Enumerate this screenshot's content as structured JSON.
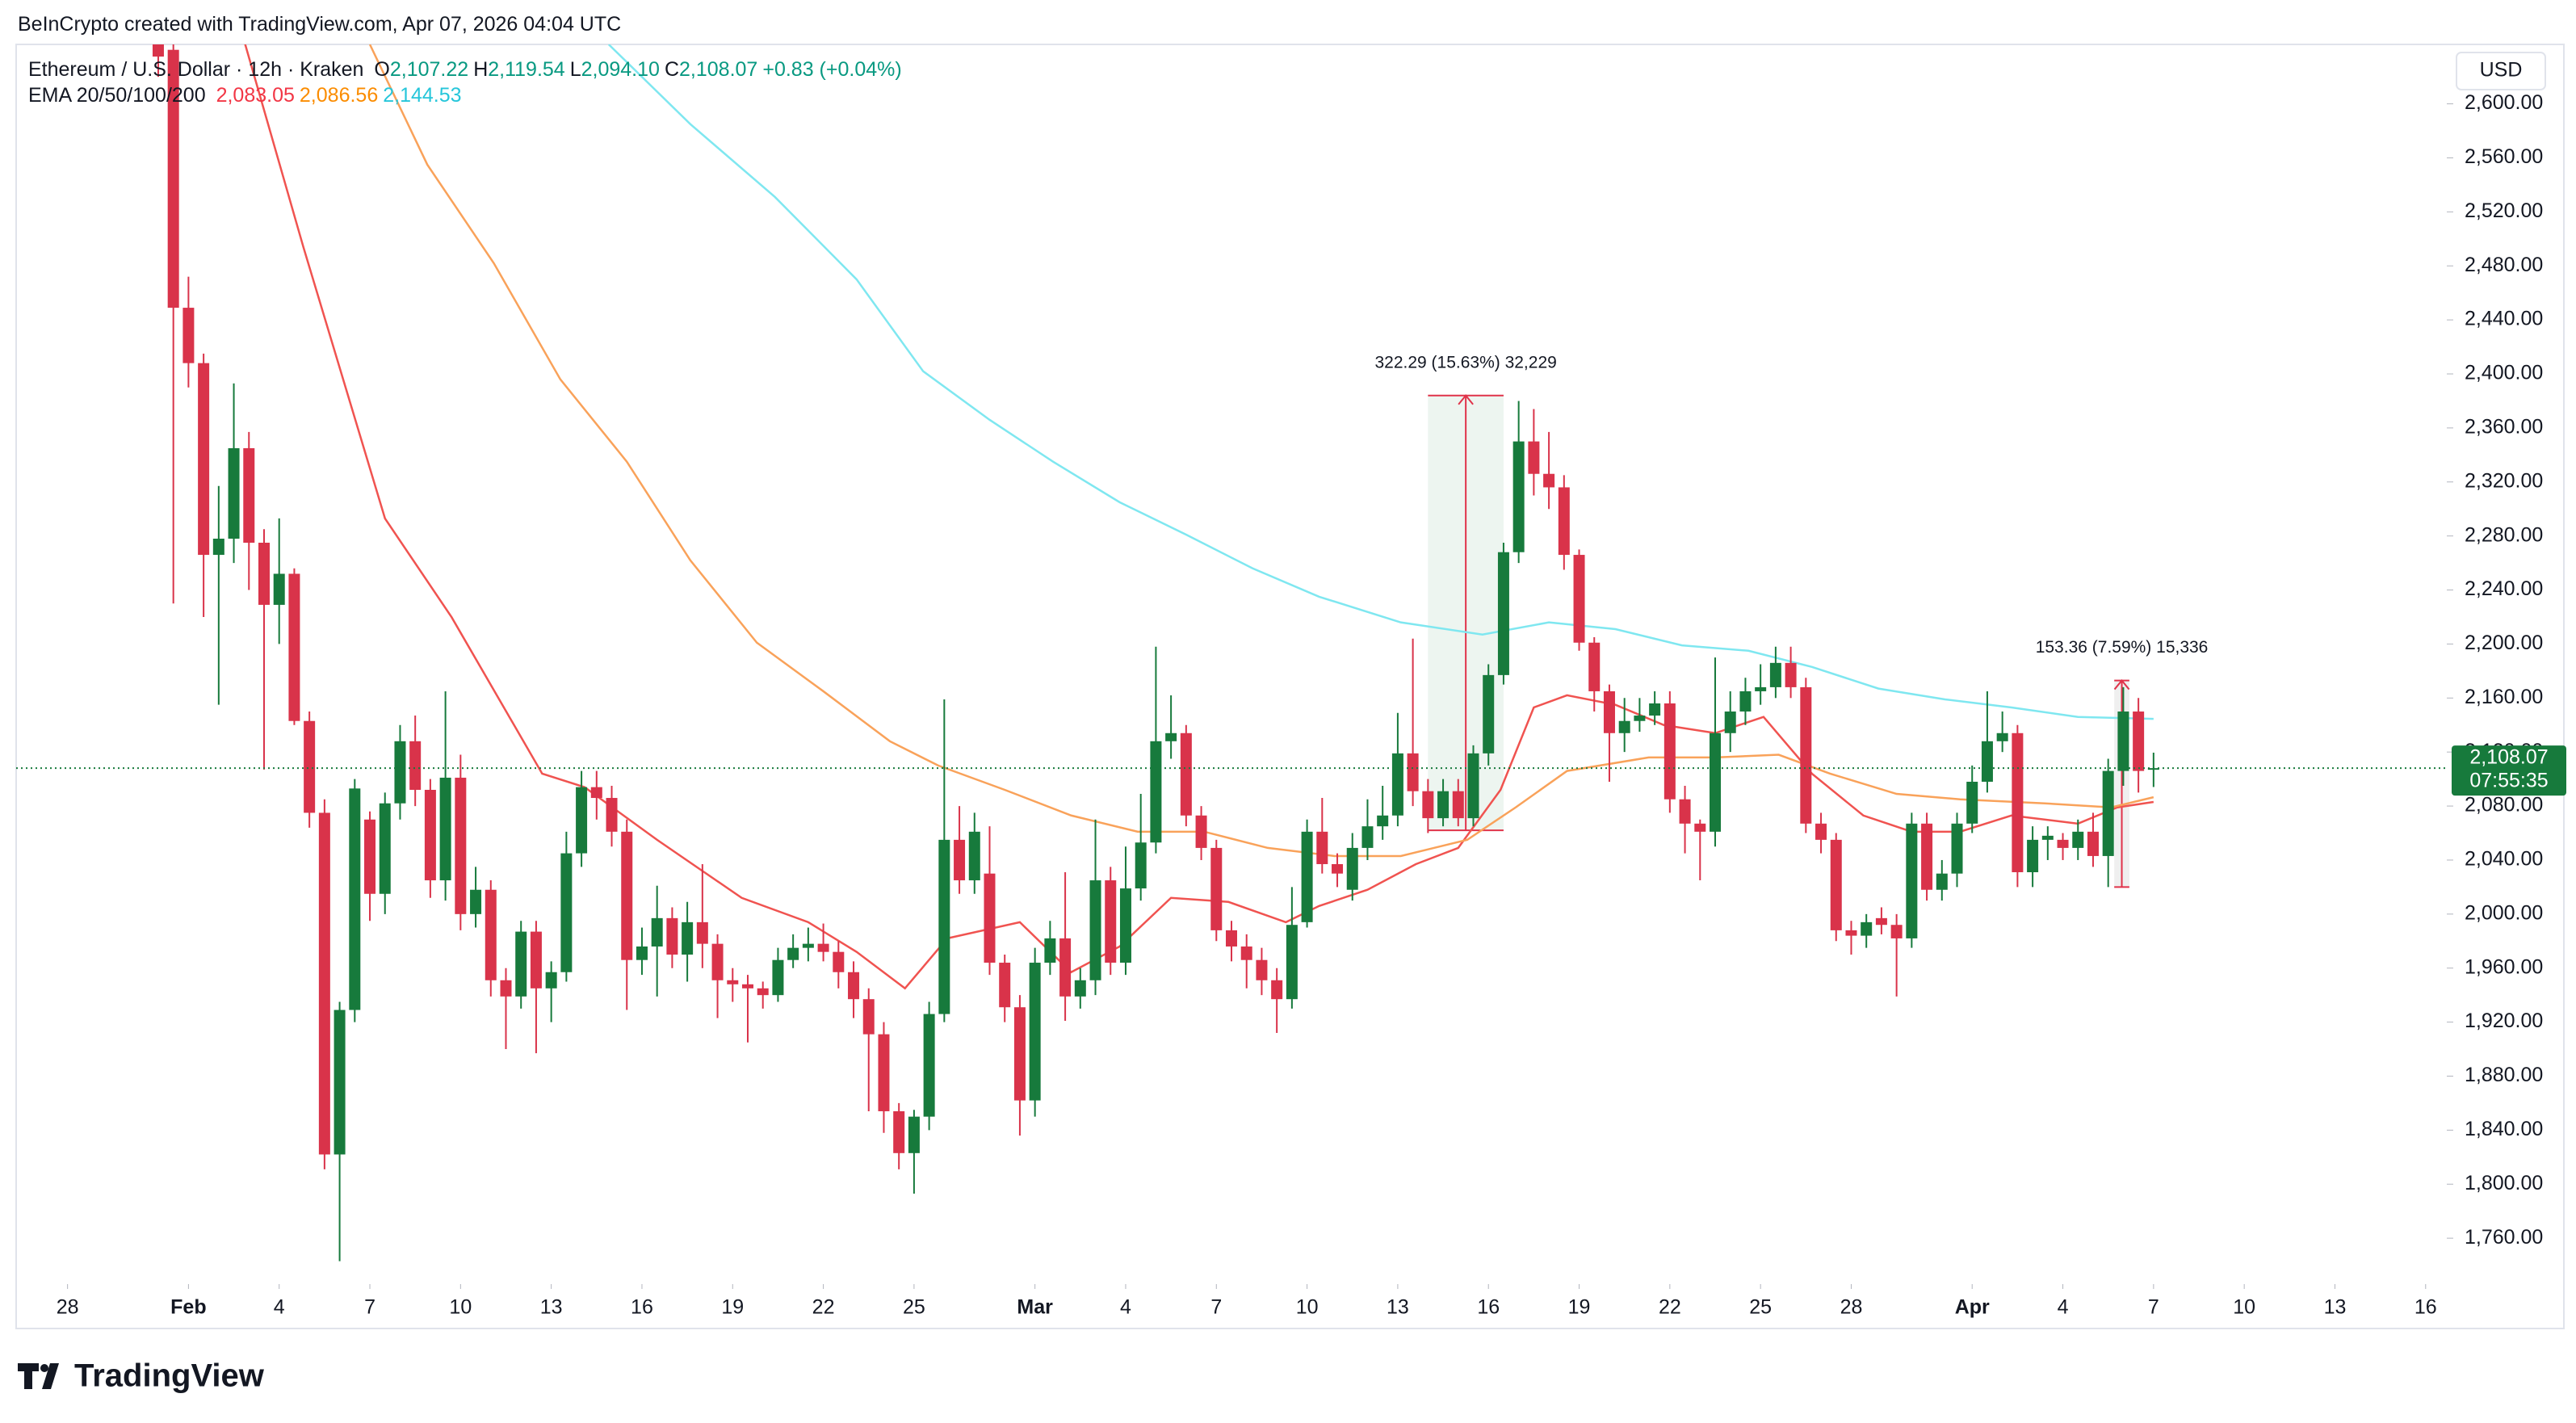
{
  "header": {
    "credit": "BeInCrypto created with TradingView.com, Apr 07, 2026 04:04 UTC",
    "symbol": "Ethereum / U.S. Dollar · 12h · Kraken",
    "ohlc": [
      {
        "key": "O",
        "text": "2,107.22"
      },
      {
        "key": "H",
        "text": "2,119.54"
      },
      {
        "key": "L",
        "text": "2,094.10"
      },
      {
        "key": "C",
        "text": "2,108.07"
      }
    ],
    "change": "+0.83 (+0.04%)",
    "ema_label": "EMA 20/50/100/200",
    "ema_values": [
      {
        "text": "2,083.05",
        "color": "#f23645"
      },
      {
        "text": "2,086.56",
        "color": "#fb8c00"
      },
      {
        "text": "2,144.53",
        "color": "#26c6da"
      }
    ],
    "currency": "USD"
  },
  "footer": {
    "logo_text": "TradingView"
  },
  "chart_data": {
    "type": "candlestick",
    "up_color": "#177a3c",
    "down_color": "#d9334a",
    "x": [
      31,
      31.5,
      32,
      32.5,
      33,
      33.5,
      34,
      34.5,
      35,
      35.5,
      36,
      36.5,
      37,
      37.5,
      38,
      38.5,
      39,
      39.5,
      40,
      40.5,
      41,
      41.5,
      42,
      42.5,
      43,
      43.5,
      44,
      44.5,
      45,
      45.5,
      46,
      46.5,
      47,
      47.5,
      48,
      48.5,
      49,
      49.5,
      50,
      50.5,
      51,
      51.5,
      52,
      52.5,
      53,
      53.5,
      54,
      54.5,
      55,
      55.5,
      56,
      56.5,
      57,
      57.5,
      58,
      58.5,
      59,
      59.5,
      60,
      60.5,
      61,
      61.5,
      62,
      62.5,
      63,
      63.5,
      64,
      64.5,
      65,
      65.5,
      66,
      66.5,
      67,
      67.5,
      68,
      68.5,
      69,
      69.5,
      70,
      70.5,
      71,
      71.5,
      72,
      72.5,
      73,
      73.5,
      74,
      74.5,
      75,
      75.5,
      76,
      76.5,
      77,
      77.5,
      78,
      78.5,
      79,
      79.5,
      80,
      80.5,
      81,
      81.5,
      82,
      82.5,
      83,
      83.5,
      84,
      84.5,
      85,
      85.5,
      86,
      86.5,
      87,
      87.5,
      88,
      88.5,
      89,
      89.5,
      90,
      90.5,
      91,
      91.5,
      92,
      92.5,
      93,
      93.5,
      94,
      94.5,
      95,
      95.5,
      96,
      96.5,
      97
    ],
    "open": [
      2660,
      2640,
      2449,
      2408,
      2266,
      2278,
      2345,
      2275,
      2229,
      2252,
      2143,
      2075,
      1822,
      1929,
      2070,
      2015,
      2082,
      2128,
      2092,
      2025,
      2101,
      2000,
      2018,
      1951,
      1939,
      1987,
      1945,
      1957,
      2045,
      2094,
      2086,
      2061,
      1966,
      1976,
      1997,
      1970,
      1994,
      1978,
      1951,
      1948,
      1945,
      1940,
      1966,
      1975,
      1978,
      1972,
      1957,
      1937,
      1911,
      1854,
      1823,
      1850,
      1926,
      2055,
      2025,
      2030,
      1964,
      1931,
      1862,
      1964,
      1982,
      1939,
      1951,
      2025,
      1964,
      2019,
      2053,
      2128,
      2134,
      2073,
      2049,
      1988,
      1976,
      1966,
      1951,
      1937,
      1994,
      2061,
      2037,
      2018,
      2049,
      2065,
      2073,
      2119,
      2091,
      2071,
      2091,
      2071,
      2119,
      2177,
      2268,
      2350,
      2326,
      2316,
      2266,
      2201,
      2165,
      2134,
      2143,
      2147,
      2156,
      2085,
      2067,
      2061,
      2134,
      2150,
      2165,
      2168,
      2186,
      2168,
      2067,
      2055,
      1988,
      1984,
      1997,
      1992,
      1982,
      2067,
      2018,
      2030,
      2067,
      2098,
      2128,
      2134,
      2031,
      2055,
      2055,
      2049,
      2061,
      2043,
      2106,
      2150,
      2107.22
    ],
    "high": [
      2700,
      2650,
      2472,
      2415,
      2317,
      2393,
      2357,
      2285,
      2293,
      2256,
      2150,
      2085,
      1935,
      2100,
      2076,
      2090,
      2140,
      2147,
      2100,
      2165,
      2118,
      2035,
      2025,
      1960,
      1995,
      1995,
      1965,
      2061,
      2106,
      2106,
      2095,
      2070,
      1990,
      2021,
      2005,
      2009,
      2037,
      1985,
      1960,
      1955,
      1950,
      1975,
      1985,
      1990,
      1993,
      1980,
      1965,
      1945,
      1920,
      1860,
      1855,
      1935,
      2159,
      2080,
      2075,
      2065,
      1970,
      1940,
      1975,
      1995,
      2031,
      1960,
      2070,
      2035,
      2050,
      2089,
      2198,
      2162,
      2140,
      2080,
      2055,
      1995,
      1985,
      1975,
      1960,
      2020,
      2070,
      2086,
      2045,
      2060,
      2085,
      2095,
      2149,
      2204,
      2100,
      2100,
      2100,
      2125,
      2185,
      2275,
      2380,
      2374,
      2357,
      2325,
      2270,
      2205,
      2170,
      2160,
      2160,
      2165,
      2165,
      2095,
      2070,
      2190,
      2165,
      2175,
      2185,
      2198,
      2198,
      2175,
      2075,
      2060,
      1995,
      2000,
      2005,
      2000,
      2075,
      2075,
      2040,
      2075,
      2110,
      2165,
      2150,
      2140,
      2065,
      2065,
      2060,
      2070,
      2075,
      2115,
      2168,
      2160,
      2119.54
    ],
    "low": [
      2620,
      2230,
      2390,
      2220,
      2155,
      2260,
      2240,
      2107,
      2200,
      2140,
      2064,
      1811,
      1743,
      1920,
      1995,
      2000,
      2070,
      2080,
      2012,
      2010,
      1988,
      1990,
      1939,
      1900,
      1930,
      1897,
      1920,
      1950,
      2035,
      2070,
      2050,
      1929,
      1955,
      1939,
      1960,
      1950,
      1960,
      1923,
      1935,
      1905,
      1930,
      1935,
      1960,
      1965,
      1965,
      1945,
      1923,
      1854,
      1838,
      1811,
      1793,
      1840,
      1920,
      2015,
      2015,
      1955,
      1920,
      1836,
      1850,
      1955,
      1921,
      1930,
      1940,
      1955,
      1955,
      2010,
      2045,
      2115,
      2065,
      2040,
      1980,
      1965,
      1945,
      1940,
      1912,
      1930,
      1990,
      2030,
      2020,
      2010,
      2040,
      2055,
      2065,
      2080,
      2060,
      2065,
      2065,
      2065,
      2110,
      2170,
      2260,
      2310,
      2300,
      2255,
      2195,
      2150,
      2098,
      2120,
      2135,
      2140,
      2075,
      2045,
      2025,
      2050,
      2120,
      2140,
      2155,
      2160,
      2160,
      2060,
      2045,
      1980,
      1970,
      1975,
      1985,
      1939,
      1975,
      2010,
      2010,
      2020,
      2060,
      2090,
      2120,
      2020,
      2020,
      2040,
      2040,
      2040,
      2035,
      2020,
      2095,
      2090,
      2094.1
    ],
    "close": [
      2635,
      2449,
      2408,
      2266,
      2278,
      2345,
      2275,
      2229,
      2252,
      2143,
      2075,
      1822,
      1929,
      2093,
      2015,
      2082,
      2128,
      2092,
      2025,
      2101,
      2000,
      2018,
      1951,
      1939,
      1987,
      1945,
      1957,
      2045,
      2094,
      2086,
      2061,
      1966,
      1976,
      1997,
      1970,
      1994,
      1978,
      1951,
      1948,
      1945,
      1940,
      1966,
      1975,
      1978,
      1972,
      1957,
      1937,
      1911,
      1854,
      1823,
      1850,
      1926,
      2055,
      2025,
      2061,
      1964,
      1931,
      1862,
      1964,
      1982,
      1939,
      1951,
      2025,
      1964,
      2019,
      2053,
      2128,
      2134,
      2073,
      2049,
      1988,
      1976,
      1966,
      1951,
      1937,
      1992,
      2061,
      2037,
      2030,
      2049,
      2065,
      2073,
      2119,
      2091,
      2071,
      2091,
      2071,
      2119,
      2177,
      2268,
      2350,
      2326,
      2316,
      2266,
      2201,
      2165,
      2134,
      2143,
      2147,
      2156,
      2085,
      2067,
      2061,
      2134,
      2150,
      2165,
      2168,
      2186,
      2168,
      2067,
      2055,
      1988,
      1984,
      1994,
      1992,
      1982,
      2067,
      2018,
      2030,
      2067,
      2098,
      2128,
      2134,
      2031,
      2055,
      2058,
      2049,
      2061,
      2043,
      2106,
      2150,
      2106,
      2108.07
    ],
    "overlays": [
      {
        "color": "#f05350",
        "x": [
          33.8,
          35.8,
          38.5,
          40.7,
          43.7,
          45.1,
          47.5,
          50.3,
          52.5,
          54.1,
          55.7,
          57.1,
          59.5,
          61.2,
          62.8,
          64.5,
          66.4,
          68.3,
          69.4,
          71.0,
          72.6,
          74.0,
          75.4,
          76.5,
          77.6,
          79.2,
          80.8,
          82.5,
          84.1,
          85.7,
          87.4,
          89.0,
          90.6,
          92.3,
          94.5,
          95.8,
          97
        ],
        "values": [
          2650,
          2494,
          2293,
          2220,
          2104,
          2094,
          2055,
          2012,
          1994,
          1972,
          1945,
          1982,
          1994,
          1957,
          1976,
          2012,
          2009,
          1994,
          2006,
          2018,
          2037,
          2049,
          2092,
          2153,
          2162,
          2155,
          2140,
          2134,
          2146,
          2104,
          2073,
          2061,
          2061,
          2073,
          2067,
          2079,
          2083.05
        ]
      },
      {
        "color": "#f9a25a",
        "x": [
          38.0,
          39.9,
          42.1,
          44.3,
          46.5,
          48.6,
          50.8,
          53.0,
          55.2,
          56.8,
          59.0,
          61.2,
          63.4,
          65.6,
          67.7,
          69.9,
          72.1,
          74.3,
          75.9,
          77.6,
          80.3,
          82.5,
          84.6,
          86.3,
          88.5,
          90.6,
          93.4,
          95.6,
          97
        ],
        "values": [
          2644,
          2555,
          2482,
          2396,
          2335,
          2262,
          2201,
          2165,
          2128,
          2110,
          2092,
          2073,
          2061,
          2061,
          2049,
          2043,
          2043,
          2055,
          2079,
          2106,
          2116,
          2116,
          2118,
          2104,
          2089,
          2085,
          2082,
          2079,
          2086.56
        ]
      },
      {
        "color": "#7fe7f0",
        "x": [
          45.9,
          48.6,
          51.4,
          54.1,
          56.3,
          58.5,
          60.6,
          62.8,
          65.0,
          67.2,
          69.4,
          72.1,
          74.8,
          77.0,
          79.2,
          81.4,
          83.6,
          85.7,
          87.9,
          90.1,
          92.3,
          94.5,
          97
        ],
        "values": [
          2644,
          2585,
          2531,
          2470,
          2402,
          2366,
          2335,
          2305,
          2281,
          2256,
          2235,
          2216,
          2207,
          2216,
          2211,
          2199,
          2195,
          2183,
          2167,
          2159,
          2153,
          2146,
          2144.53
        ]
      }
    ],
    "measures": [
      {
        "label": "322.29 (15.63%) 32,229",
        "x": [
          73.0,
          75.5
        ],
        "y": [
          2062,
          2384
        ],
        "fill": "rgba(23,122,60,0.08)",
        "color": "#e0334a"
      },
      {
        "label": "153.36 (7.59%) 15,336",
        "x": [
          95.7,
          96.2
        ],
        "y": [
          2020,
          2173
        ],
        "fill": "rgba(120,120,120,0.12)",
        "color": "#e0334a"
      }
    ],
    "last_price": {
      "value": 2108.07,
      "label": "2,108.07",
      "color": "#177a3c"
    },
    "countdown": "07:55:35",
    "xlim": [
      26.3,
      106.7
    ],
    "xticks": [
      28,
      {
        "value": 32,
        "label": "Feb"
      },
      {
        "value": 35,
        "label": "4"
      },
      {
        "value": 38,
        "label": "7"
      },
      {
        "value": 41,
        "label": "10"
      },
      {
        "value": 44,
        "label": "13"
      },
      {
        "value": 47,
        "label": "16"
      },
      {
        "value": 50,
        "label": "19"
      },
      {
        "value": 53,
        "label": "22"
      },
      {
        "value": 56,
        "label": "25"
      },
      {
        "value": 60,
        "label": "Mar"
      },
      {
        "value": 63,
        "label": "4"
      },
      {
        "value": 66,
        "label": "7"
      },
      {
        "value": 69,
        "label": "10"
      },
      {
        "value": 72,
        "label": "13"
      },
      {
        "value": 75,
        "label": "16"
      },
      {
        "value": 78,
        "label": "19"
      },
      {
        "value": 81,
        "label": "22"
      },
      {
        "value": 84,
        "label": "25"
      },
      {
        "value": 87,
        "label": "28"
      },
      {
        "value": 91,
        "label": "Apr"
      },
      {
        "value": 94,
        "label": "4"
      },
      {
        "value": 97,
        "label": "7"
      },
      {
        "value": 100,
        "label": "10"
      },
      {
        "value": 103,
        "label": "13"
      },
      {
        "value": 106,
        "label": "16"
      }
    ],
    "ylim": [
      1726,
      2644
    ],
    "yticks": [
      {
        "value": 1760,
        "label": "1,760.00"
      },
      {
        "value": 1800,
        "label": "1,800.00"
      },
      {
        "value": 1840,
        "label": "1,840.00"
      },
      {
        "value": 1880,
        "label": "1,880.00"
      },
      {
        "value": 1920,
        "label": "1,920.00"
      },
      {
        "value": 1960,
        "label": "1,960.00"
      },
      {
        "value": 2000,
        "label": "2,000.00"
      },
      {
        "value": 2040,
        "label": "2,040.00"
      },
      {
        "value": 2080,
        "label": "2,080.00"
      },
      {
        "value": 2120,
        "label": "2,120.00"
      },
      {
        "value": 2160,
        "label": "2,160.00"
      },
      {
        "value": 2200,
        "label": "2,200.00"
      },
      {
        "value": 2240,
        "label": "2,240.00"
      },
      {
        "value": 2280,
        "label": "2,280.00"
      },
      {
        "value": 2320,
        "label": "2,320.00"
      },
      {
        "value": 2360,
        "label": "2,360.00"
      },
      {
        "value": 2400,
        "label": "2,400.00"
      },
      {
        "value": 2440,
        "label": "2,440.00"
      },
      {
        "value": 2480,
        "label": "2,480.00"
      },
      {
        "value": 2520,
        "label": "2,520.00"
      },
      {
        "value": 2560,
        "label": "2,560.00"
      },
      {
        "value": 2600,
        "label": "2,600.00"
      }
    ],
    "grid": false
  }
}
